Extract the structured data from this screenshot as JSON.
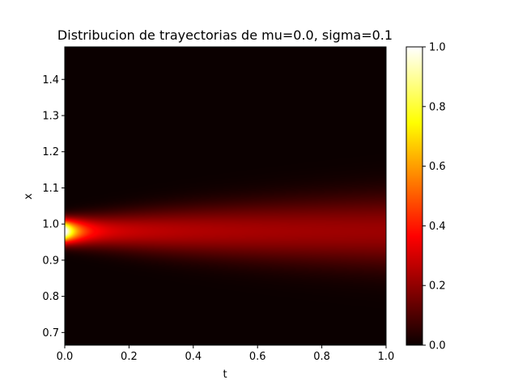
{
  "chart_data": {
    "type": "heatmap",
    "title": "Distribucion de trayectorias de mu=0.0, sigma=0.1",
    "xlabel": "t",
    "ylabel": "x",
    "xlim": [
      0.0,
      1.0
    ],
    "ylim": [
      0.665,
      1.49
    ],
    "x_ticks": [
      "0.0",
      "0.2",
      "0.4",
      "0.6",
      "0.8",
      "1.0"
    ],
    "y_ticks": [
      "0.7",
      "0.8",
      "0.9",
      "1.0",
      "1.1",
      "1.2",
      "1.3",
      "1.4"
    ],
    "colorbar": {
      "colormap": "hot",
      "range": [
        0.0,
        1.0
      ],
      "ticks": [
        "0.0",
        "0.2",
        "0.4",
        "0.6",
        "0.8",
        "1.0"
      ]
    },
    "density_model": {
      "center_x": 0.98,
      "peak_value_at_t0": 1.0,
      "value_at_t1": 0.2,
      "sigma": 0.1
    },
    "grid": false,
    "legend": "none"
  }
}
